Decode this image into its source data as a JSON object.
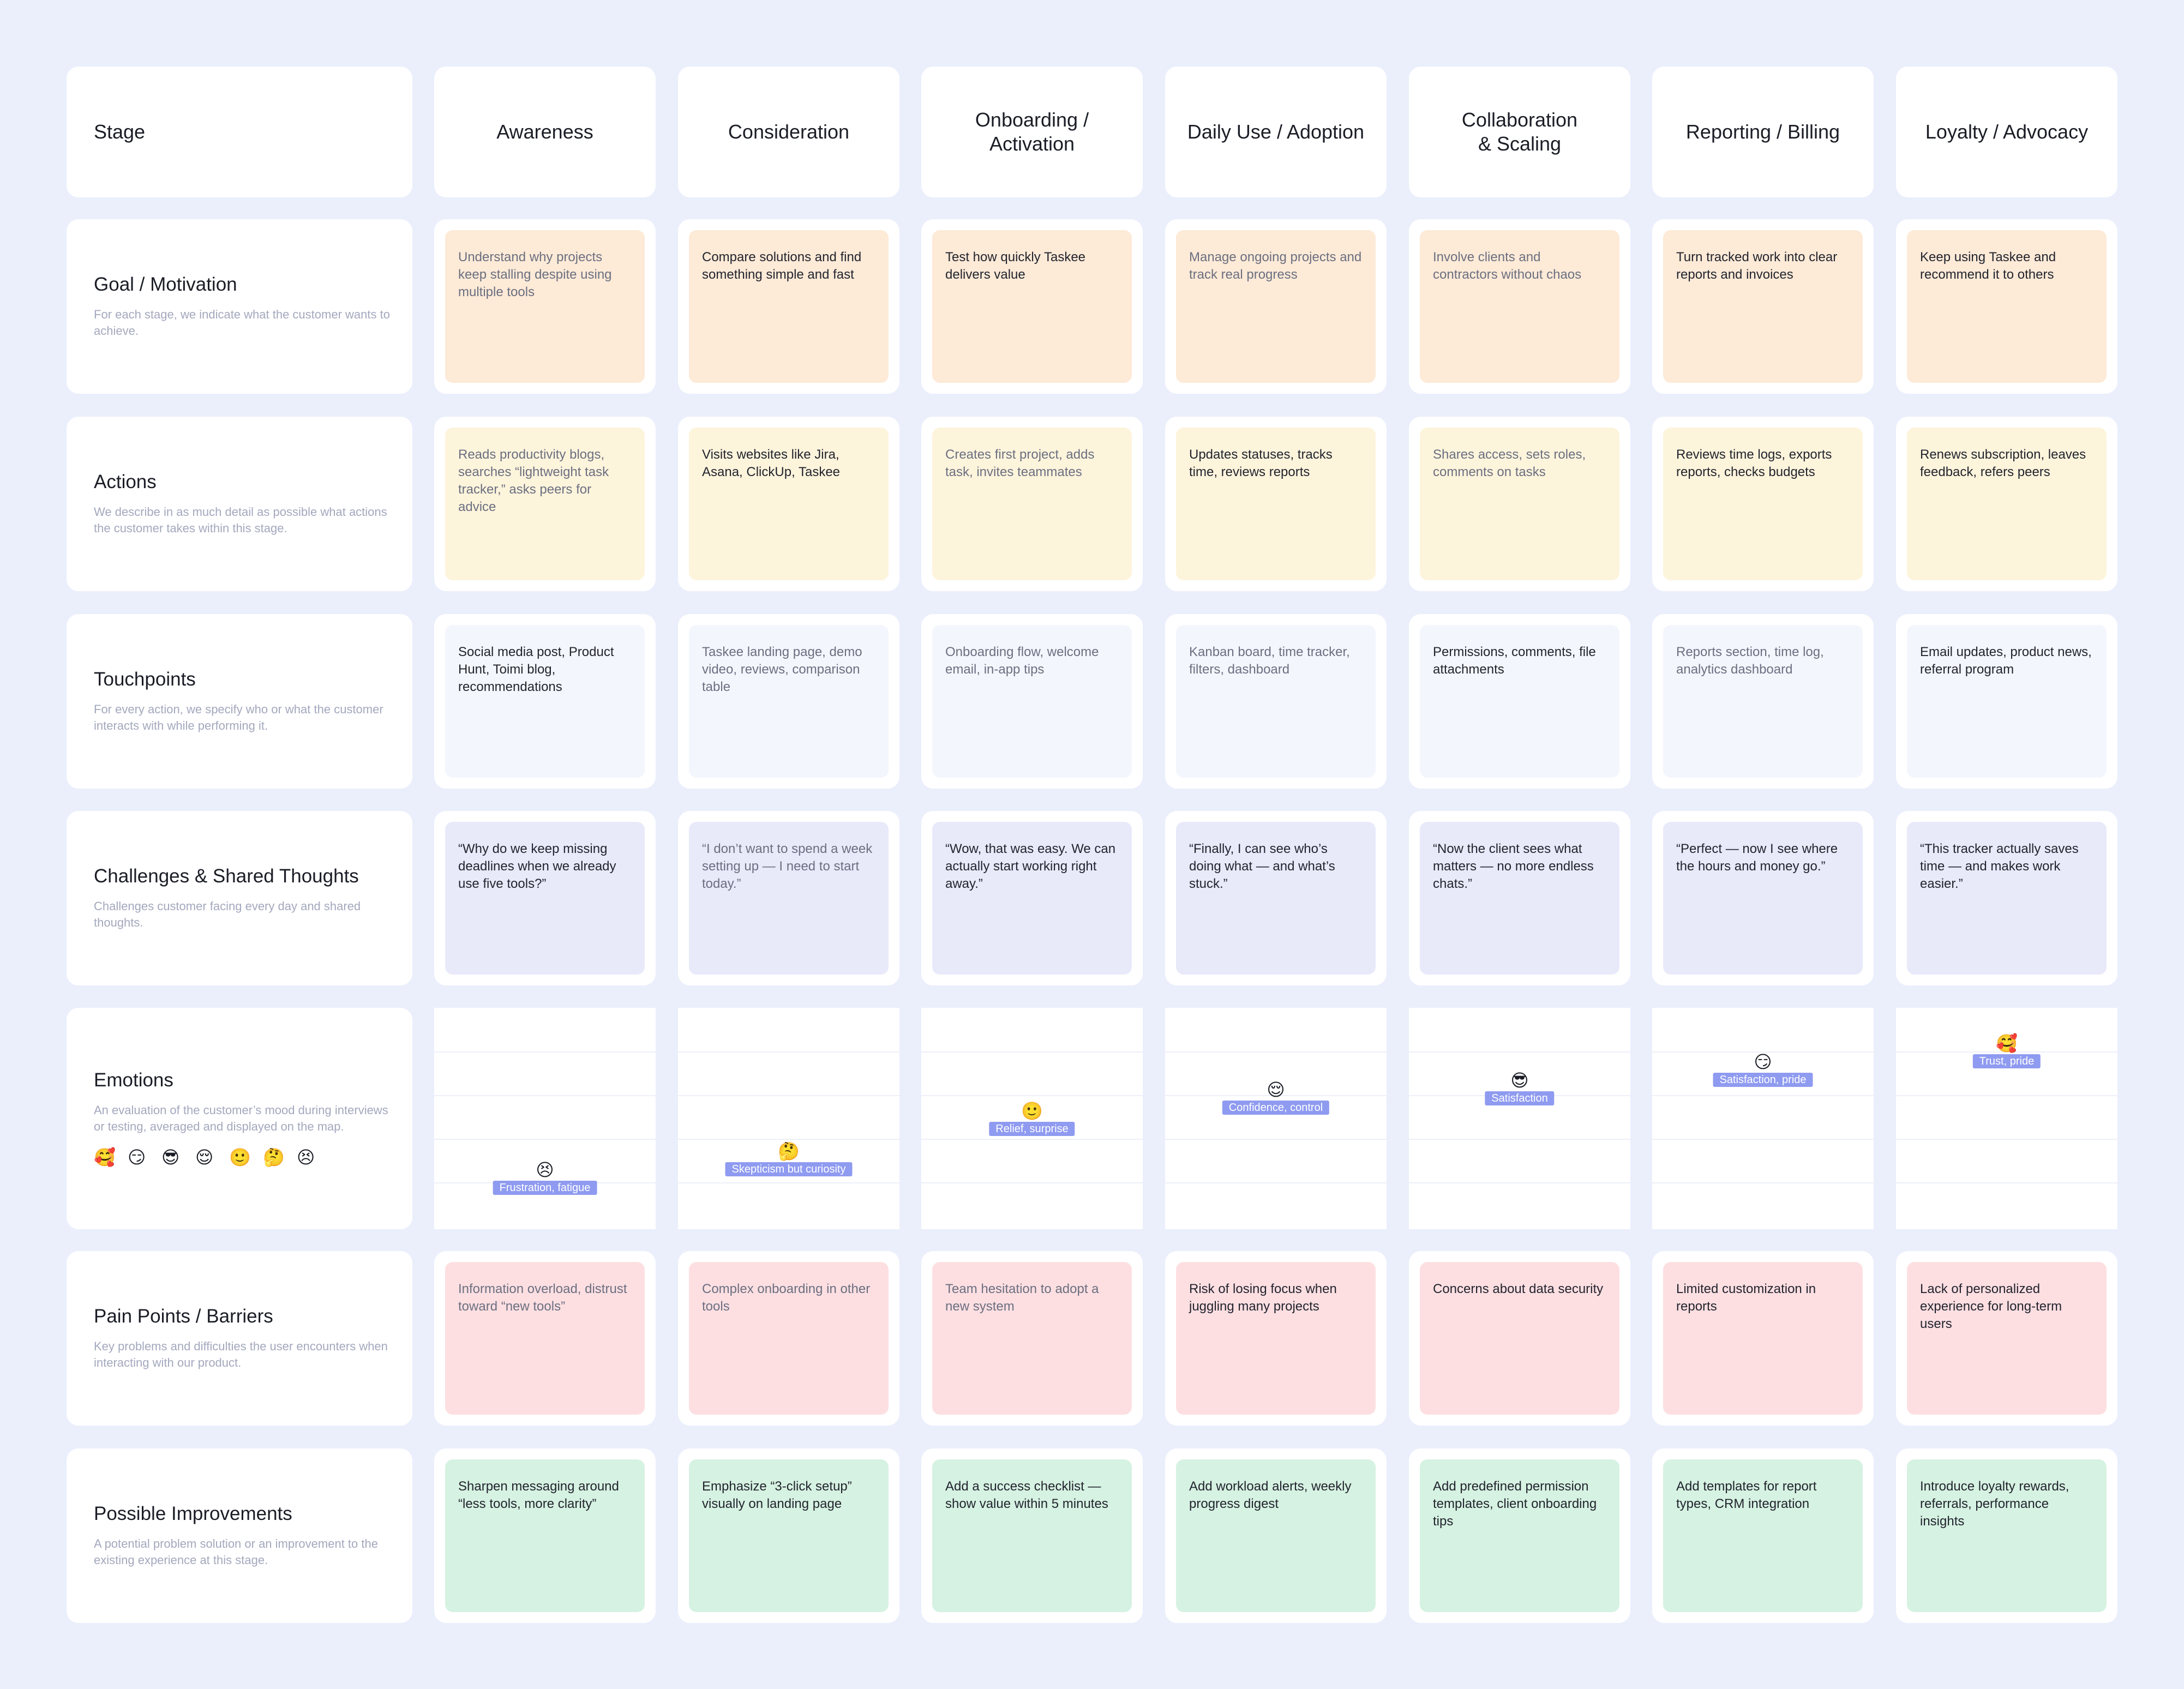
{
  "header": {
    "label": "Stage"
  },
  "stages": [
    {
      "title": "Awareness"
    },
    {
      "title": "Consideration"
    },
    {
      "title": "Onboarding /\nActivation"
    },
    {
      "title": "Daily Use / Adoption"
    },
    {
      "title": "Collaboration\n& Scaling"
    },
    {
      "title": "Reporting / Billing"
    },
    {
      "title": "Loyalty / Advocacy"
    }
  ],
  "rows": [
    {
      "id": "goal",
      "title": "Goal / Motivation",
      "description": "For each stage, we indicate what the customer wants to achieve.",
      "style": "goal",
      "cells": [
        {
          "text": "Understand why projects keep stalling despite using multiple tools",
          "tone": "grey"
        },
        {
          "text": "Compare solutions and find something simple and fast",
          "tone": "dark"
        },
        {
          "text": "Test how quickly Taskee delivers value",
          "tone": "dark"
        },
        {
          "text": "Manage ongoing projects and track real progress",
          "tone": "grey"
        },
        {
          "text": "Involve clients and contractors without chaos",
          "tone": "grey"
        },
        {
          "text": "Turn tracked work into clear reports and invoices",
          "tone": "dark"
        },
        {
          "text": "Keep using Taskee and recommend it to others",
          "tone": "dark"
        }
      ]
    },
    {
      "id": "actions",
      "title": "Actions",
      "description": "We describe in as much detail as possible what actions the customer takes within this stage.",
      "style": "action",
      "cells": [
        {
          "text": "Reads productivity blogs, searches “lightweight task tracker,” asks peers for advice",
          "tone": "grey"
        },
        {
          "text": "Visits websites like Jira, Asana, ClickUp, Taskee",
          "tone": "dark"
        },
        {
          "text": "Creates first project, adds task, invites teammates",
          "tone": "grey"
        },
        {
          "text": "Updates statuses, tracks time, reviews reports",
          "tone": "dark"
        },
        {
          "text": "Shares access, sets roles, comments on tasks",
          "tone": "grey"
        },
        {
          "text": "Reviews time logs, exports reports, checks budgets",
          "tone": "dark"
        },
        {
          "text": "Renews subscription, leaves feedback, refers peers",
          "tone": "dark"
        }
      ]
    },
    {
      "id": "touchpoints",
      "title": "Touchpoints",
      "description": "For every action, we specify who or what the customer interacts with while performing it.",
      "style": "touch",
      "cells": [
        {
          "text": "Social media post, Product Hunt, Toimi blog, recommendations",
          "tone": "dark"
        },
        {
          "text": "Taskee landing page, demo video, reviews, comparison table",
          "tone": "grey"
        },
        {
          "text": "Onboarding flow, welcome email, in-app tips",
          "tone": "grey"
        },
        {
          "text": "Kanban board, time tracker, filters, dashboard",
          "tone": "grey"
        },
        {
          "text": "Permissions, comments, file attachments",
          "tone": "dark"
        },
        {
          "text": "Reports section, time log, analytics dashboard",
          "tone": "grey"
        },
        {
          "text": "Email updates, product news, referral program",
          "tone": "dark"
        }
      ]
    },
    {
      "id": "challenges",
      "title": "Challenges & Shared Thoughts",
      "description": "Challenges customer facing every day and shared thoughts.",
      "style": "quote",
      "cells": [
        {
          "text": "“Why do we keep missing deadlines when we already use five tools?”",
          "tone": "dark"
        },
        {
          "text": "“I don’t want to spend a week setting up — I need to start today.”",
          "tone": "grey"
        },
        {
          "text": "“Wow, that was easy. We can actually start working right away.”",
          "tone": "dark"
        },
        {
          "text": "“Finally, I can see who’s doing what — and what’s stuck.”",
          "tone": "dark"
        },
        {
          "text": "“Now the client sees what matters — no more endless chats.”",
          "tone": "dark"
        },
        {
          "text": "“Perfect — now I see where the hours and money go.”",
          "tone": "dark"
        },
        {
          "text": "“This tracker actually saves time — and makes work easier.”",
          "tone": "dark"
        }
      ]
    }
  ],
  "emotions": {
    "title": "Emotions",
    "description": "An evaluation of the customer’s mood during interviews or testing, averaged and displayed on the map.",
    "scale": [
      "🥰",
      "😏",
      "😎",
      "😌",
      "🙂",
      "🤔",
      "😣"
    ],
    "scale_max": 7,
    "points": [
      {
        "face": "😣",
        "label": "Frustration, fatigue",
        "level": 1.4
      },
      {
        "face": "🤔",
        "label": "Skepticism but curiosity",
        "level": 2.0
      },
      {
        "face": "🙂",
        "label": "Relief, surprise",
        "level": 3.3
      },
      {
        "face": "😌",
        "label": "Confidence, control",
        "level": 4.0
      },
      {
        "face": "😎",
        "label": "Satisfaction",
        "level": 4.3
      },
      {
        "face": "😏",
        "label": "Satisfaction, pride",
        "level": 4.9
      },
      {
        "face": "🥰",
        "label": "Trust, pride",
        "level": 5.5
      }
    ]
  },
  "rows_after": [
    {
      "id": "pain",
      "title": "Pain Points / Barriers",
      "description": "Key problems and difficulties the user encounters when interacting with our product.",
      "style": "pain",
      "cells": [
        {
          "text": "Information overload, distrust toward “new tools”",
          "tone": "grey"
        },
        {
          "text": "Complex onboarding in other tools",
          "tone": "grey"
        },
        {
          "text": "Team hesitation to adopt a new system",
          "tone": "grey"
        },
        {
          "text": "Risk of losing focus when juggling many projects",
          "tone": "dark"
        },
        {
          "text": "Concerns about data security",
          "tone": "dark"
        },
        {
          "text": "Limited customization in reports",
          "tone": "dark"
        },
        {
          "text": "Lack of personalized experience for long-term users",
          "tone": "dark"
        }
      ]
    },
    {
      "id": "improvements",
      "title": "Possible Improvements",
      "description": "A potential problem solution or an improvement to the existing experience at this stage.",
      "style": "improve",
      "cells": [
        {
          "text": "Sharpen messaging around “less tools, more clarity”",
          "tone": "dark"
        },
        {
          "text": "Emphasize “3-click setup” visually on landing page",
          "tone": "dark"
        },
        {
          "text": "Add a success checklist — show value within 5 minutes",
          "tone": "dark"
        },
        {
          "text": "Add workload alerts, weekly progress digest",
          "tone": "dark"
        },
        {
          "text": "Add predefined permission templates, client onboarding tips",
          "tone": "dark"
        },
        {
          "text": "Add templates for report types, CRM integration",
          "tone": "dark"
        },
        {
          "text": "Introduce loyalty rewards, referrals, performance insights",
          "tone": "dark"
        }
      ]
    }
  ]
}
